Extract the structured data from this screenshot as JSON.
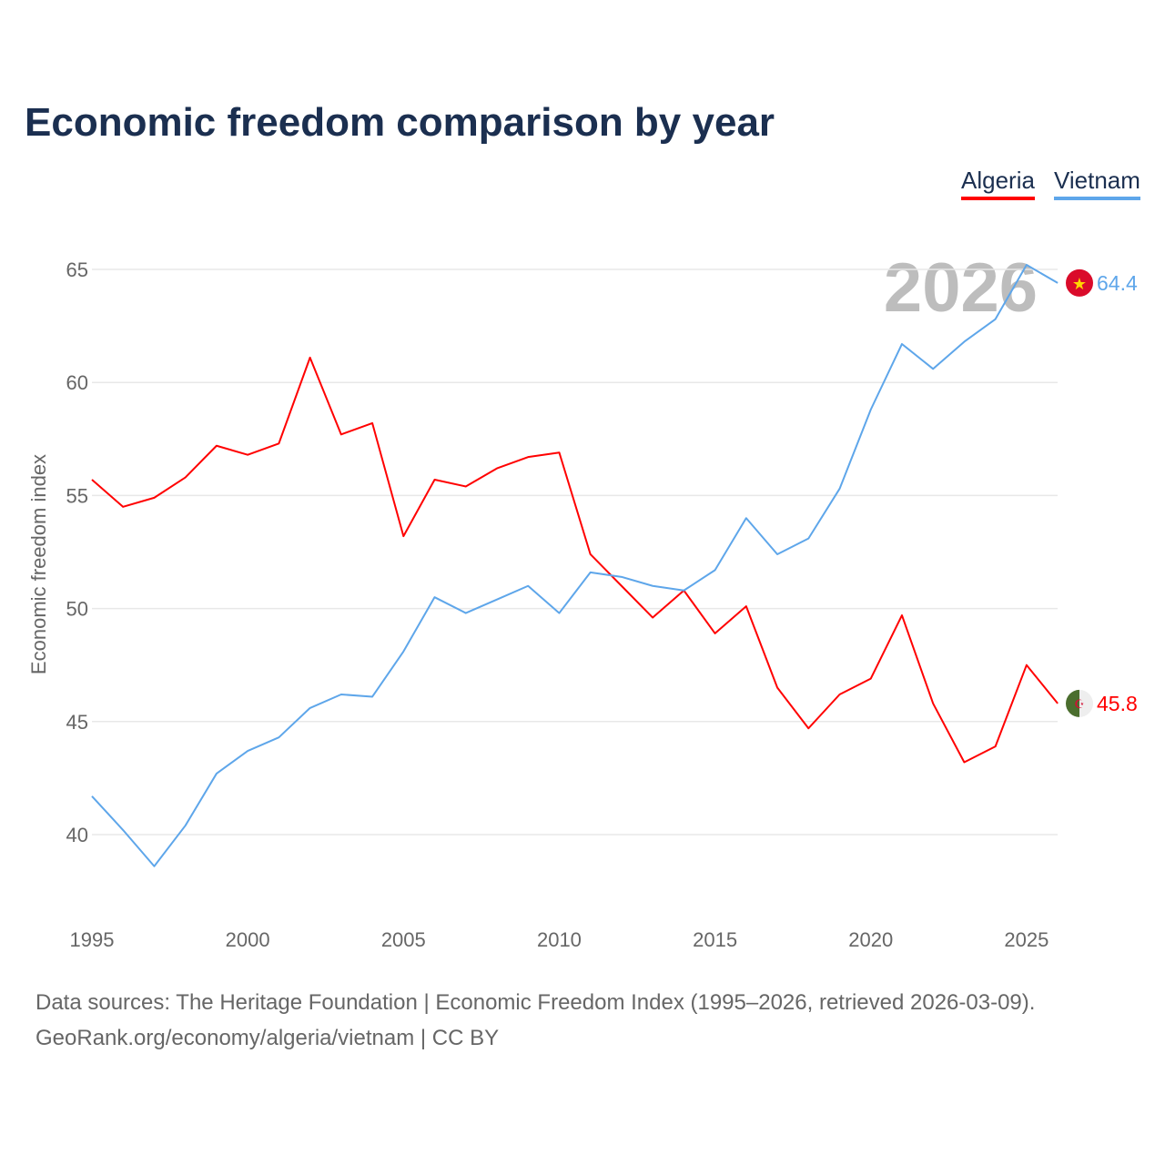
{
  "chart_data": {
    "type": "line",
    "title": "Economic freedom comparison by year",
    "ylabel": "Economic freedom index",
    "xlabel": "",
    "ylim": [
      36,
      67
    ],
    "xlim": [
      1995,
      2026
    ],
    "yticks": [
      40,
      45,
      50,
      55,
      60,
      65
    ],
    "xticks": [
      1995,
      2000,
      2005,
      2010,
      2015,
      2020,
      2025
    ],
    "watermark_year": "2026",
    "grid": true,
    "legend_position": "top-right",
    "x": [
      1995,
      1996,
      1997,
      1998,
      1999,
      2000,
      2001,
      2002,
      2003,
      2004,
      2005,
      2006,
      2007,
      2008,
      2009,
      2010,
      2011,
      2012,
      2013,
      2014,
      2015,
      2016,
      2017,
      2018,
      2019,
      2020,
      2021,
      2022,
      2023,
      2024,
      2025,
      2026
    ],
    "series": [
      {
        "name": "Algeria",
        "color": "#ff0000",
        "end_label": "45.8",
        "flag": "algeria-flag",
        "values": [
          55.7,
          54.5,
          54.9,
          55.8,
          57.2,
          56.8,
          57.3,
          61.1,
          57.7,
          58.2,
          53.2,
          55.7,
          55.4,
          56.2,
          56.7,
          56.9,
          52.4,
          51.0,
          49.6,
          50.8,
          48.9,
          50.1,
          46.5,
          44.7,
          46.2,
          46.9,
          49.7,
          45.8,
          43.2,
          43.9,
          47.5,
          45.8
        ]
      },
      {
        "name": "Vietnam",
        "color": "#5ea6ea",
        "end_label": "64.4",
        "flag": "vietnam-flag",
        "values": [
          41.7,
          40.2,
          38.6,
          40.4,
          42.7,
          43.7,
          44.3,
          45.6,
          46.2,
          46.1,
          48.1,
          50.5,
          49.8,
          50.4,
          51.0,
          49.8,
          51.6,
          51.4,
          51.0,
          50.8,
          51.7,
          54.0,
          52.4,
          53.1,
          55.3,
          58.8,
          61.7,
          60.6,
          61.8,
          62.8,
          65.2,
          64.4
        ]
      }
    ]
  },
  "footer": {
    "sources": "Data sources: The Heritage Foundation | Economic Freedom Index (1995–2026, retrieved 2026-03-09).",
    "credit": "GeoRank.org/economy/algeria/vietnam | CC BY"
  }
}
